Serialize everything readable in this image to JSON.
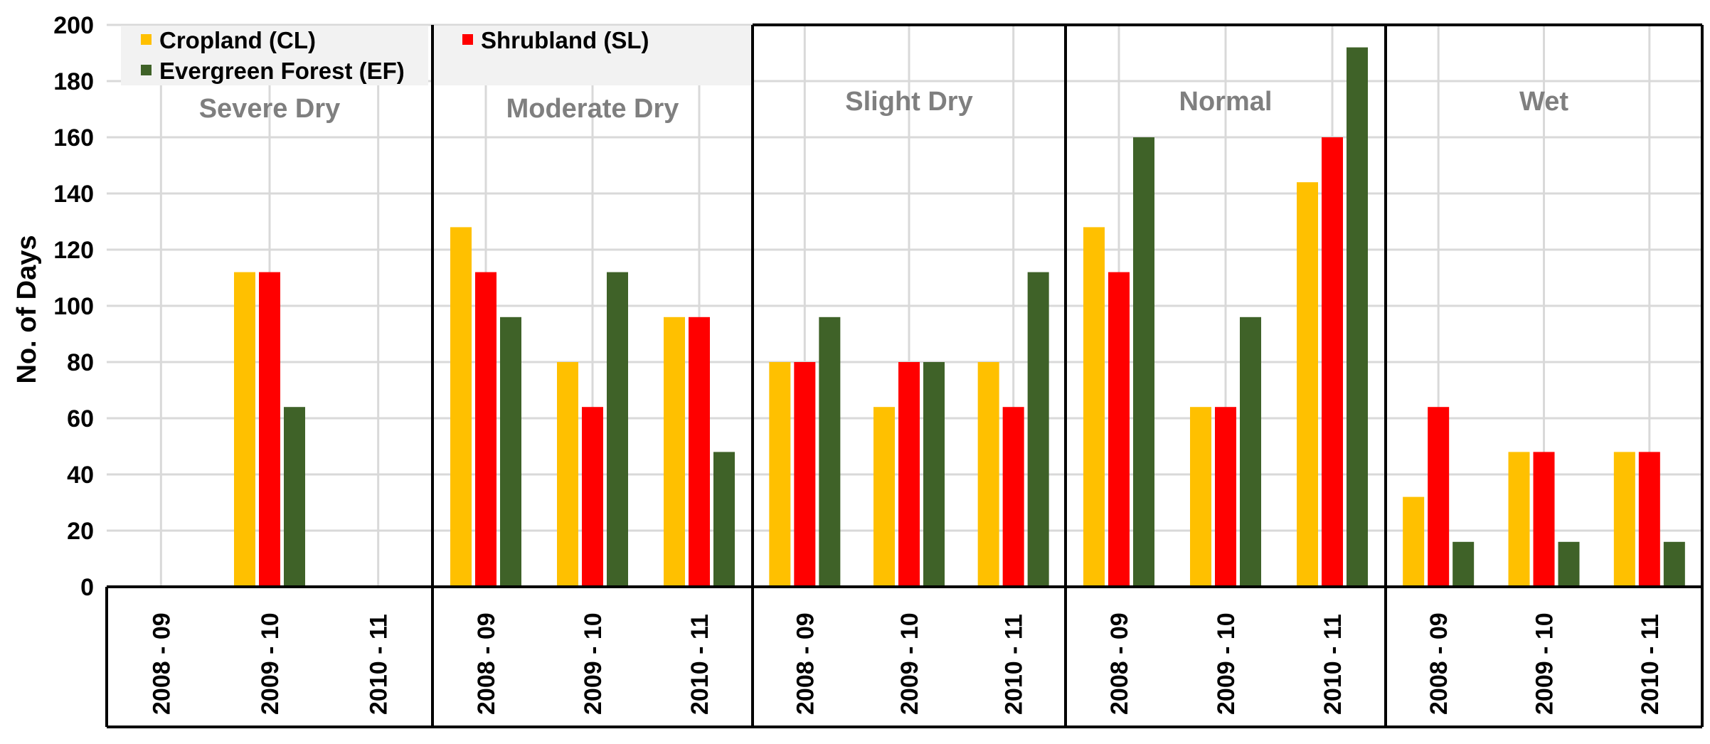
{
  "chart_data": {
    "type": "bar",
    "title": "",
    "xlabel": "",
    "ylabel": "No. of Days",
    "ylim": [
      0,
      200
    ],
    "yticks": [
      0,
      20,
      40,
      60,
      80,
      100,
      120,
      140,
      160,
      180,
      200
    ],
    "grid": true,
    "legend_position": "top-left",
    "series_names": [
      "Cropland (CL)",
      "Shrubland (SL)",
      "Evergreen Forest (EF)"
    ],
    "series_colors": [
      "#FFC000",
      "#FF0000",
      "#3F6228"
    ],
    "categories": [
      "2008 - 09",
      "2009 - 10",
      "2010 - 11"
    ],
    "panels": [
      {
        "name": "Severe Dry",
        "series": [
          {
            "name": "Cropland (CL)",
            "values": [
              0,
              112,
              0
            ]
          },
          {
            "name": "Shrubland (SL)",
            "values": [
              0,
              112,
              0
            ]
          },
          {
            "name": "Evergreen Forest (EF)",
            "values": [
              0,
              64,
              0
            ]
          }
        ]
      },
      {
        "name": "Moderate Dry",
        "series": [
          {
            "name": "Cropland (CL)",
            "values": [
              128,
              80,
              96
            ]
          },
          {
            "name": "Shrubland (SL)",
            "values": [
              112,
              64,
              96
            ]
          },
          {
            "name": "Evergreen Forest (EF)",
            "values": [
              96,
              112,
              48
            ]
          }
        ]
      },
      {
        "name": "Slight Dry",
        "series": [
          {
            "name": "Cropland (CL)",
            "values": [
              80,
              64,
              80
            ]
          },
          {
            "name": "Shrubland (SL)",
            "values": [
              80,
              80,
              64
            ]
          },
          {
            "name": "Evergreen Forest (EF)",
            "values": [
              96,
              80,
              112
            ]
          }
        ]
      },
      {
        "name": "Normal",
        "series": [
          {
            "name": "Cropland (CL)",
            "values": [
              128,
              64,
              144
            ]
          },
          {
            "name": "Shrubland (SL)",
            "values": [
              112,
              64,
              160
            ]
          },
          {
            "name": "Evergreen Forest (EF)",
            "values": [
              160,
              96,
              192
            ]
          }
        ]
      },
      {
        "name": "Wet",
        "series": [
          {
            "name": "Cropland (CL)",
            "values": [
              32,
              48,
              48
            ]
          },
          {
            "name": "Shrubland (SL)",
            "values": [
              64,
              48,
              48
            ]
          },
          {
            "name": "Evergreen Forest (EF)",
            "values": [
              16,
              16,
              16
            ]
          }
        ]
      }
    ]
  }
}
